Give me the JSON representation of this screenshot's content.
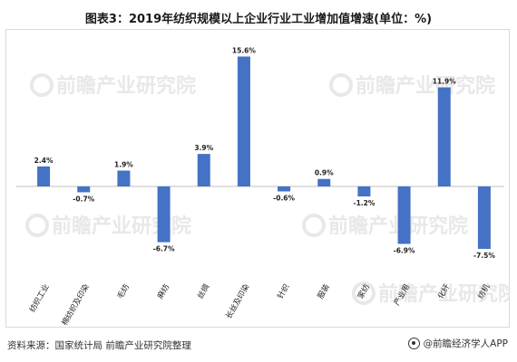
{
  "title": "图表3：2019年纺织规模以上企业行业工业增加值增速(单位：%)",
  "footer": {
    "source": "资料来源：国家统计局 前瞻产业研究院整理",
    "brand": "@前瞻经济学人APP"
  },
  "watermark": {
    "text": "前瞻产业研究院",
    "icon": "prospective-logo-icon"
  },
  "colors": {
    "bar": "#4472C4",
    "axis": "#bfbfbf"
  },
  "chart_data": {
    "type": "bar",
    "title": "图表3：2019年纺织规模以上企业行业工业增加值增速(单位：%)",
    "xlabel": "",
    "ylabel": "",
    "ylim": [
      -9,
      17
    ],
    "grid": false,
    "legend": "none",
    "categories": [
      "纺织工业",
      "棉纺织及印染",
      "毛纺",
      "麻纺",
      "丝绸",
      "长丝及印染",
      "针织",
      "服装",
      "家纺",
      "产业用",
      "化纤",
      "纺机"
    ],
    "values": [
      2.4,
      -0.7,
      1.9,
      -6.7,
      3.9,
      15.6,
      -0.6,
      0.9,
      -1.2,
      -6.9,
      11.9,
      -7.5
    ],
    "value_labels": [
      "2.4%",
      "-0.7%",
      "1.9%",
      "-6.7%",
      "3.9%",
      "15.6%",
      "-0.6%",
      "0.9%",
      "-1.2%",
      "-6.9%",
      "11.9%",
      "-7.5%"
    ]
  }
}
